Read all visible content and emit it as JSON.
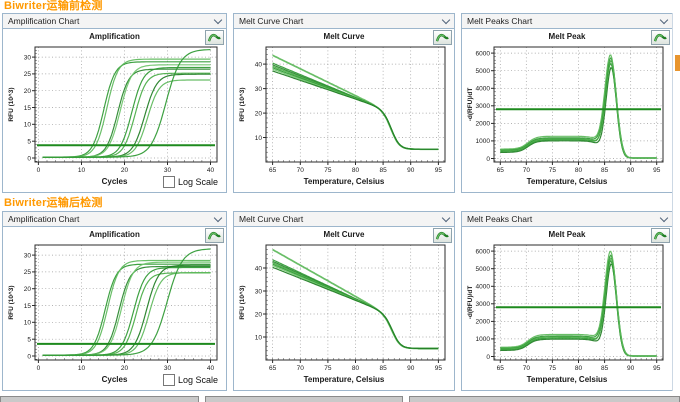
{
  "colors": {
    "accent_orange": "#ff9900",
    "panel_border": "#9db6cc",
    "curve_green": "#2e9932",
    "curve_green_light": "#5cb85a",
    "threshold_green": "#1e8a1e",
    "grid_gray": "#9a9a9a"
  },
  "icons": {
    "dropdown": "chevron-down-icon",
    "chart_tool": "pan-curve-icon",
    "checkbox": "log-scale-checkbox"
  },
  "rows": [
    {
      "title": "Biwriter运输前检测",
      "panels": [
        {
          "dropdown_label": "Amplification Chart",
          "chart_title": "Amplification",
          "xlabel": "Cycles",
          "log_scale_label": "Log Scale"
        },
        {
          "dropdown_label": "Melt Curve Chart",
          "chart_title": "Melt Curve",
          "xlabel": "Temperature, Celsius"
        },
        {
          "dropdown_label": "Melt Peaks Chart",
          "chart_title": "Melt Peak",
          "xlabel": "Temperature, Celsius"
        }
      ]
    },
    {
      "title": "Biwriter运输后检测",
      "panels": [
        {
          "dropdown_label": "Amplification Chart",
          "chart_title": "Amplification",
          "xlabel": "Cycles",
          "log_scale_label": "Log Scale"
        },
        {
          "dropdown_label": "Melt Curve Chart",
          "chart_title": "Melt Curve",
          "xlabel": "Temperature, Celsius"
        },
        {
          "dropdown_label": "Melt Peaks Chart",
          "chart_title": "Melt Peak",
          "xlabel": "Temperature, Celsius"
        }
      ]
    }
  ],
  "chart_data": [
    {
      "type": "line",
      "kind": "amp",
      "title": "Amplification",
      "xlabel": "Cycles",
      "ylabel": "RFU (10^3)",
      "xlim": [
        -0.8,
        41.5
      ],
      "ylim": [
        -1.2,
        33
      ],
      "xticks": [
        0,
        10,
        20,
        30,
        40
      ],
      "yticks": [
        0,
        5,
        10,
        15,
        20,
        25,
        30
      ],
      "x_minor": 2,
      "y_minor": 1,
      "threshold": 3.8,
      "series": [
        {
          "midpoint": 15.2,
          "plateau": 28.6,
          "base": 0.25,
          "slope": 1.3,
          "color": "#2e9932"
        },
        {
          "midpoint": 15.9,
          "plateau": 29.4,
          "base": 0.25,
          "slope": 1.3,
          "color": "#5cb85a"
        },
        {
          "midpoint": 18.4,
          "plateau": 26.4,
          "base": 0.25,
          "slope": 1.3,
          "color": "#27862b"
        },
        {
          "midpoint": 19.0,
          "plateau": 27.7,
          "base": 0.25,
          "slope": 1.35,
          "color": "#6ec46a"
        },
        {
          "midpoint": 21.7,
          "plateau": 26.9,
          "base": 0.25,
          "slope": 1.35,
          "color": "#2e9932"
        },
        {
          "midpoint": 22.4,
          "plateau": 25.2,
          "base": 0.25,
          "slope": 1.3,
          "color": "#49ad45"
        },
        {
          "midpoint": 24.7,
          "plateau": 24.9,
          "base": 0.25,
          "slope": 1.4,
          "color": "#1f7d23"
        },
        {
          "midpoint": 25.3,
          "plateau": 23.2,
          "base": 0.25,
          "slope": 1.35,
          "color": "#5cb85a"
        },
        {
          "midpoint": 29.6,
          "plateau": 32.3,
          "base": 0.25,
          "slope": 1.7,
          "color": "#2e9932"
        }
      ]
    },
    {
      "type": "line",
      "kind": "melt",
      "title": "Melt Curve",
      "xlabel": "Temperature, Celsius",
      "ylabel": "RFU (10^3)",
      "xlim": [
        63.8,
        96.2
      ],
      "ylim": [
        0,
        47
      ],
      "xticks": [
        65,
        70,
        75,
        80,
        85,
        90,
        95
      ],
      "yticks": [
        10,
        20,
        30,
        40
      ],
      "x_minor": 1,
      "y_minor": 2,
      "knee_temp": 84.2,
      "knee_value": 22.5,
      "drop_center": 86.6,
      "drop_width": 0.75,
      "end_value": 5.2,
      "series": [
        {
          "start": 43.6,
          "color": "#5cb85a",
          "width": 1.7
        },
        {
          "start": 40.4,
          "color": "#2e9932"
        },
        {
          "start": 39.7,
          "color": "#27862b"
        },
        {
          "start": 39.1,
          "color": "#49ad45"
        },
        {
          "start": 38.5,
          "color": "#2e9932"
        },
        {
          "start": 37.9,
          "color": "#6ec46a"
        },
        {
          "start": 37.2,
          "color": "#1f7d23"
        }
      ]
    },
    {
      "type": "line",
      "kind": "peak",
      "title": "Melt Peak",
      "xlabel": "Temperature, Celsius",
      "ylabel": "-d(RFU)/dT",
      "xlim": [
        63.8,
        96.2
      ],
      "ylim": [
        -200,
        6350
      ],
      "xticks": [
        65,
        70,
        75,
        80,
        85,
        90,
        95
      ],
      "yticks": [
        0,
        1000,
        2000,
        3000,
        4000,
        5000,
        6000
      ],
      "x_minor": 1,
      "y_minor": 200,
      "threshold": 2800,
      "base_rise_center": 70.3,
      "base_cut_center": 84.6,
      "floor": 25,
      "series": [
        {
          "base_low": 320,
          "base_high": 980,
          "peak_height": 5050,
          "peak_center": 86.3,
          "peak_sigma": 1.0,
          "color": "#1f7d23"
        },
        {
          "base_low": 380,
          "base_high": 1040,
          "peak_height": 5250,
          "peak_center": 86.2,
          "peak_sigma": 1.05,
          "color": "#2e9932"
        },
        {
          "base_low": 430,
          "base_high": 1090,
          "peak_height": 5420,
          "peak_center": 86.25,
          "peak_sigma": 1.05,
          "color": "#49ad45"
        },
        {
          "base_low": 470,
          "base_high": 1150,
          "peak_height": 5560,
          "peak_center": 86.2,
          "peak_sigma": 1.1,
          "color": "#2e9932"
        },
        {
          "base_low": 510,
          "base_high": 1240,
          "peak_height": 5720,
          "peak_center": 86.15,
          "peak_sigma": 1.1,
          "color": "#5cb85a"
        }
      ]
    },
    {
      "type": "line",
      "kind": "amp",
      "title": "Amplification",
      "xlabel": "Cycles",
      "ylabel": "RFU (10^3)",
      "xlim": [
        -0.8,
        41.5
      ],
      "ylim": [
        -1.2,
        33
      ],
      "xticks": [
        0,
        10,
        20,
        30,
        40
      ],
      "yticks": [
        0,
        5,
        10,
        15,
        20,
        25,
        30
      ],
      "x_minor": 2,
      "y_minor": 1,
      "threshold": 3.6,
      "series": [
        {
          "midpoint": 15.5,
          "plateau": 27.3,
          "base": 0.25,
          "slope": 1.3,
          "color": "#2e9932"
        },
        {
          "midpoint": 16.1,
          "plateau": 28.4,
          "base": 0.25,
          "slope": 1.3,
          "color": "#5cb85a"
        },
        {
          "midpoint": 18.7,
          "plateau": 26.6,
          "base": 0.25,
          "slope": 1.3,
          "color": "#27862b"
        },
        {
          "midpoint": 19.3,
          "plateau": 27.9,
          "base": 0.25,
          "slope": 1.35,
          "color": "#6ec46a"
        },
        {
          "midpoint": 22.1,
          "plateau": 26.3,
          "base": 0.25,
          "slope": 1.35,
          "color": "#2e9932"
        },
        {
          "midpoint": 22.7,
          "plateau": 24.7,
          "base": 0.25,
          "slope": 1.3,
          "color": "#49ad45"
        },
        {
          "midpoint": 25.1,
          "plateau": 27.0,
          "base": 0.25,
          "slope": 1.4,
          "color": "#1f7d23"
        },
        {
          "midpoint": 25.7,
          "plateau": 24.8,
          "base": 0.25,
          "slope": 1.35,
          "color": "#5cb85a"
        },
        {
          "midpoint": 29.9,
          "plateau": 31.9,
          "base": 0.25,
          "slope": 1.75,
          "color": "#2e9932"
        }
      ]
    },
    {
      "type": "line",
      "kind": "melt",
      "title": "Melt Curve",
      "xlabel": "Temperature, Celsius",
      "ylabel": "RFU (10^3)",
      "xlim": [
        63.8,
        96.2
      ],
      "ylim": [
        0,
        50
      ],
      "xticks": [
        65,
        70,
        75,
        80,
        85,
        90,
        95
      ],
      "yticks": [
        10,
        20,
        30,
        40
      ],
      "x_minor": 1,
      "y_minor": 2,
      "knee_temp": 84.3,
      "knee_value": 21.8,
      "drop_center": 86.8,
      "drop_width": 0.75,
      "end_value": 5.0,
      "series": [
        {
          "start": 48.0,
          "color": "#5cb85a",
          "width": 1.7
        },
        {
          "start": 43.6,
          "color": "#2e9932"
        },
        {
          "start": 42.9,
          "color": "#27862b"
        },
        {
          "start": 42.3,
          "color": "#49ad45"
        },
        {
          "start": 41.7,
          "color": "#2e9932"
        },
        {
          "start": 41.1,
          "color": "#6ec46a"
        },
        {
          "start": 40.3,
          "color": "#1f7d23"
        }
      ]
    },
    {
      "type": "line",
      "kind": "peak",
      "title": "Melt Peak",
      "xlabel": "Temperature, Celsius",
      "ylabel": "-d(RFU)/dT",
      "xlim": [
        63.8,
        96.2
      ],
      "ylim": [
        -200,
        6350
      ],
      "xticks": [
        65,
        70,
        75,
        80,
        85,
        90,
        95
      ],
      "yticks": [
        0,
        1000,
        2000,
        3000,
        4000,
        5000,
        6000
      ],
      "x_minor": 1,
      "y_minor": 200,
      "threshold": 2800,
      "base_rise_center": 70.3,
      "base_cut_center": 84.6,
      "floor": 25,
      "series": [
        {
          "base_low": 320,
          "base_high": 960,
          "peak_height": 5150,
          "peak_center": 86.3,
          "peak_sigma": 1.0,
          "color": "#1f7d23"
        },
        {
          "base_low": 370,
          "base_high": 1020,
          "peak_height": 5300,
          "peak_center": 86.2,
          "peak_sigma": 1.05,
          "color": "#2e9932"
        },
        {
          "base_low": 420,
          "base_high": 1080,
          "peak_height": 5450,
          "peak_center": 86.25,
          "peak_sigma": 1.05,
          "color": "#49ad45"
        },
        {
          "base_low": 460,
          "base_high": 1140,
          "peak_height": 5600,
          "peak_center": 86.2,
          "peak_sigma": 1.1,
          "color": "#2e9932"
        },
        {
          "base_low": 500,
          "base_high": 1230,
          "peak_height": 5820,
          "peak_center": 86.15,
          "peak_sigma": 1.1,
          "color": "#5cb85a"
        }
      ]
    }
  ]
}
